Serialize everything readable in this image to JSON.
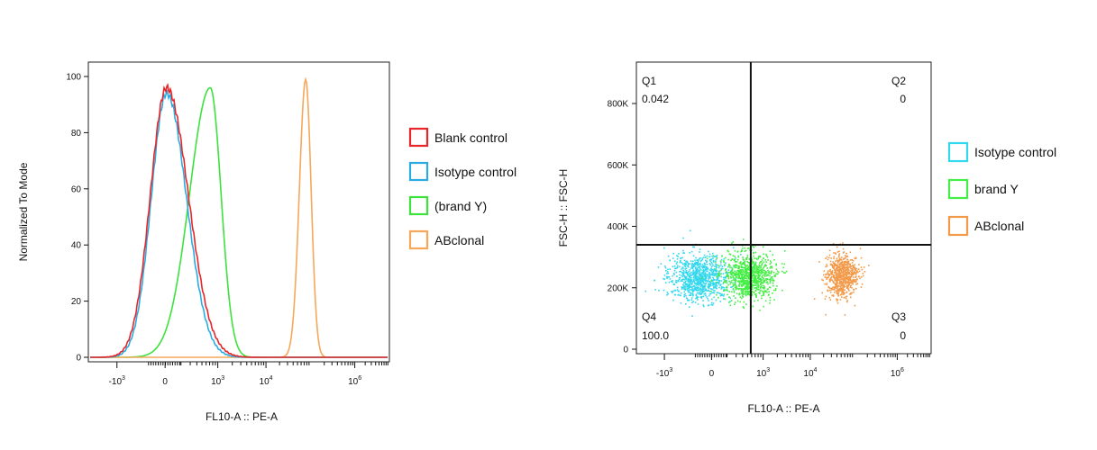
{
  "chart_data": [
    {
      "type": "line",
      "subtype": "histogram",
      "xlabel": "FL10-A :: PE-A",
      "ylabel": "Normalized To Mode",
      "x_scale": "biexponential",
      "x_ticks": [
        "-10^3",
        "0",
        "10^3",
        "10^4",
        "10^6"
      ],
      "y_ticks": [
        "0",
        "20",
        "40",
        "60",
        "80",
        "100"
      ],
      "ylim": [
        0,
        100
      ],
      "legend": "right",
      "series": [
        {
          "name": "Blank control",
          "color": "#e8262a",
          "peak_x": 0,
          "peak_y": 96
        },
        {
          "name": "Isotype control",
          "color": "#2aace2",
          "peak_x": 0,
          "peak_y": 94
        },
        {
          "name": "(brand Y)",
          "color": "#3de23d",
          "peak_x": 700,
          "peak_y": 96
        },
        {
          "name": "ABclonal",
          "color": "#f7a75a",
          "peak_x": 70000,
          "peak_y": 99
        }
      ]
    },
    {
      "type": "scatter",
      "xlabel": "FL10-A :: PE-A",
      "ylabel": "FSC-H :: FSC-H",
      "x_scale": "biexponential",
      "x_ticks": [
        "-10^3",
        "0",
        "10^3",
        "10^4",
        "10^6"
      ],
      "y_ticks": [
        "0",
        "200K",
        "400K",
        "600K",
        "800K"
      ],
      "ylim": [
        0,
        900000
      ],
      "legend": "right",
      "gate": {
        "x": 500,
        "y": 345000
      },
      "quadrants": [
        {
          "name": "Q1",
          "value": "0.042"
        },
        {
          "name": "Q2",
          "value": "0"
        },
        {
          "name": "Q3",
          "value": "0"
        },
        {
          "name": "Q4",
          "value": "100.0"
        }
      ],
      "series": [
        {
          "name": "Isotype control",
          "color": "#33d7ee",
          "center_x": -150,
          "center_y": 235000
        },
        {
          "name": "brand Y",
          "color": "#44ee44",
          "center_x": 300,
          "center_y": 240000
        },
        {
          "name": "ABclonal",
          "color": "#f39a4a",
          "center_x": 60000,
          "center_y": 240000
        }
      ]
    }
  ]
}
